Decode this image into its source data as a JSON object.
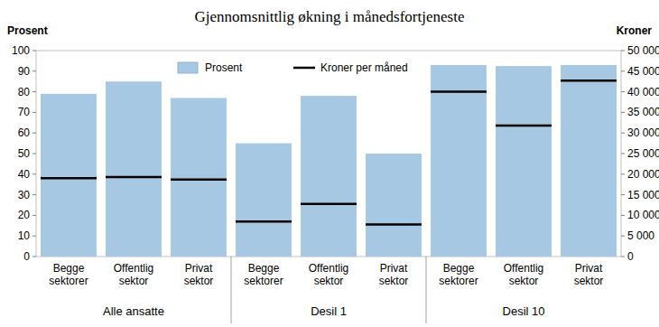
{
  "chart_data": {
    "type": "bar",
    "title": "Gjennomsnittlig økning i månedsfortjeneste",
    "y_label": "Prosent",
    "y2_label": "Kroner",
    "categories": [
      "Begge sektorer",
      "Offentlig sektor",
      "Privat sektor",
      "Begge sektorer",
      "Offentlig sektor",
      "Privat sektor",
      "Begge sektorer",
      "Offentlig sektor",
      "Privat sektor"
    ],
    "group_labels": [
      "Alle ansatte",
      "Desil 1",
      "Desil 10"
    ],
    "series": [
      {
        "name": "Prosent",
        "type": "bar",
        "color": "#a7c8e2",
        "values": [
          79,
          85,
          77,
          55,
          78,
          50,
          93,
          92.5,
          93
        ]
      },
      {
        "name": "Kroner per måned",
        "type": "scatter",
        "marker": "dash",
        "line_style": "none",
        "color": "#000000",
        "axis": "y2",
        "values": [
          19000,
          19300,
          18700,
          8500,
          12800,
          7800,
          40000,
          31800,
          42700
        ]
      }
    ],
    "ylim": [
      0,
      100
    ],
    "yticks": [
      0,
      10,
      20,
      30,
      40,
      50,
      60,
      70,
      80,
      90,
      100
    ],
    "y2lim": [
      0,
      50000
    ],
    "y2ticks": [
      0,
      {
        "value": 5000,
        "label": "5 000"
      },
      {
        "value": 10000,
        "label": "10 000"
      },
      {
        "value": 15000,
        "label": "15 000"
      },
      {
        "value": 20000,
        "label": "20 000"
      },
      {
        "value": 25000,
        "label": "25 000"
      },
      {
        "value": 30000,
        "label": "30 000"
      },
      {
        "value": 35000,
        "label": "35 000"
      },
      {
        "value": 40000,
        "label": "40 000"
      },
      {
        "value": 45000,
        "label": "45 000"
      },
      {
        "value": 50000,
        "label": "50 000"
      }
    ],
    "grid": false,
    "legend": "top"
  }
}
